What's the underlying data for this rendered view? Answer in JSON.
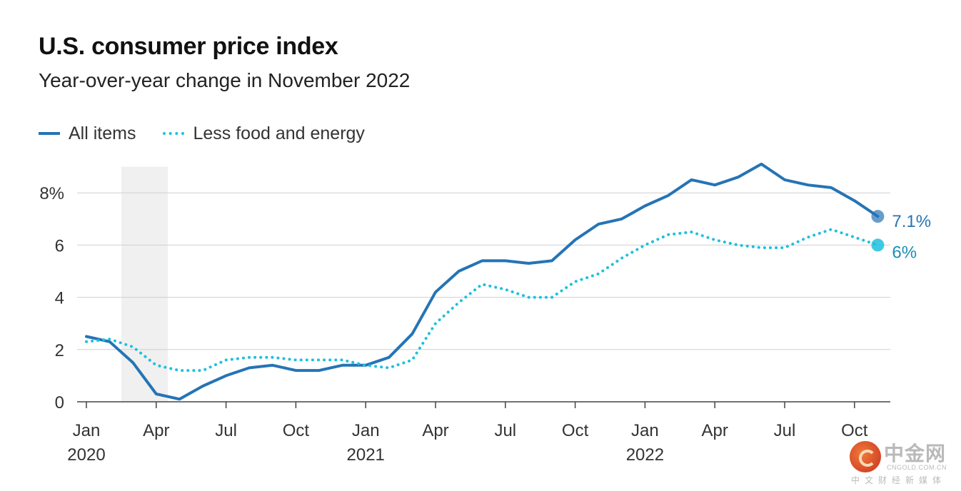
{
  "header": {
    "title": "U.S. consumer price index",
    "subtitle": "Year-over-year change in November 2022"
  },
  "legend": [
    {
      "label": "All items",
      "style": "solid",
      "color": "#2574b5"
    },
    {
      "label": "Less food and energy",
      "style": "dotted",
      "color": "#1ec0dd"
    }
  ],
  "watermark": {
    "name": "中金网",
    "domain": "CNGOLD.COM.CN",
    "tagline": "中文财经新媒体"
  },
  "chart_data": {
    "type": "line",
    "title": "U.S. consumer price index",
    "subtitle": "Year-over-year change in November 2022",
    "x": [
      "2020-01",
      "2020-02",
      "2020-03",
      "2020-04",
      "2020-05",
      "2020-06",
      "2020-07",
      "2020-08",
      "2020-09",
      "2020-10",
      "2020-11",
      "2020-12",
      "2021-01",
      "2021-02",
      "2021-03",
      "2021-04",
      "2021-05",
      "2021-06",
      "2021-07",
      "2021-08",
      "2021-09",
      "2021-10",
      "2021-11",
      "2021-12",
      "2022-01",
      "2022-02",
      "2022-03",
      "2022-04",
      "2022-05",
      "2022-06",
      "2022-07",
      "2022-08",
      "2022-09",
      "2022-10",
      "2022-11"
    ],
    "x_tick_labels": [
      {
        "x": "2020-01",
        "label": "Jan",
        "year": "2020"
      },
      {
        "x": "2020-04",
        "label": "Apr",
        "year": ""
      },
      {
        "x": "2020-07",
        "label": "Jul",
        "year": ""
      },
      {
        "x": "2020-10",
        "label": "Oct",
        "year": ""
      },
      {
        "x": "2021-01",
        "label": "Jan",
        "year": "2021"
      },
      {
        "x": "2021-04",
        "label": "Apr",
        "year": ""
      },
      {
        "x": "2021-07",
        "label": "Jul",
        "year": ""
      },
      {
        "x": "2021-10",
        "label": "Oct",
        "year": ""
      },
      {
        "x": "2022-01",
        "label": "Jan",
        "year": "2022"
      },
      {
        "x": "2022-04",
        "label": "Apr",
        "year": ""
      },
      {
        "x": "2022-07",
        "label": "Jul",
        "year": ""
      },
      {
        "x": "2022-10",
        "label": "Oct",
        "year": ""
      }
    ],
    "y_ticks": [
      0,
      2,
      4,
      6,
      8
    ],
    "y_tick_labels": [
      "0",
      "2",
      "4",
      "6",
      "8%"
    ],
    "ylim": [
      0,
      9
    ],
    "grid": true,
    "legend_position": "top-left",
    "shaded_range": [
      "2020-03",
      "2020-04"
    ],
    "series": [
      {
        "name": "All items",
        "color": "#2574b5",
        "style": "solid",
        "values": [
          2.5,
          2.3,
          1.5,
          0.3,
          0.1,
          0.6,
          1.0,
          1.3,
          1.4,
          1.2,
          1.2,
          1.4,
          1.4,
          1.7,
          2.6,
          4.2,
          5.0,
          5.4,
          5.4,
          5.3,
          5.4,
          6.2,
          6.8,
          7.0,
          7.5,
          7.9,
          8.5,
          8.3,
          8.6,
          9.1,
          8.5,
          8.3,
          8.2,
          7.7,
          7.1
        ],
        "end_label": "7.1%"
      },
      {
        "name": "Less food and energy",
        "color": "#1ec0dd",
        "style": "dotted",
        "values": [
          2.3,
          2.4,
          2.1,
          1.4,
          1.2,
          1.2,
          1.6,
          1.7,
          1.7,
          1.6,
          1.6,
          1.6,
          1.4,
          1.3,
          1.6,
          3.0,
          3.8,
          4.5,
          4.3,
          4.0,
          4.0,
          4.6,
          4.9,
          5.5,
          6.0,
          6.4,
          6.5,
          6.2,
          6.0,
          5.9,
          5.9,
          6.3,
          6.6,
          6.3,
          6.0
        ],
        "end_label": "6%"
      }
    ]
  }
}
